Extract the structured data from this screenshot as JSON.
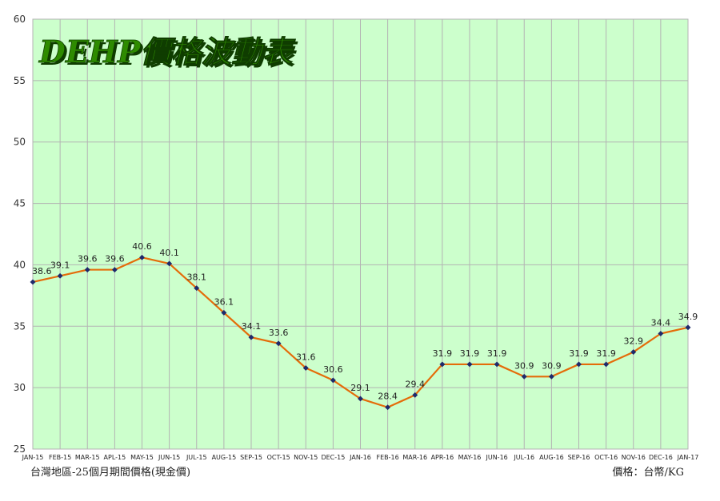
{
  "chart_data": {
    "type": "line",
    "title": "DEHP價格波動表",
    "categories": [
      "JAN-15",
      "FEB-15",
      "MAR-15",
      "APL-15",
      "MAY-15",
      "JUN-15",
      "JUL-15",
      "AUG-15",
      "SEP-15",
      "OCT-15",
      "NOV-15",
      "DEC-15",
      "JAN-16",
      "FEB-16",
      "MAR-16",
      "APR-16",
      "MAY-16",
      "JUN-16",
      "JUL-16",
      "AUG-16",
      "SEP-16",
      "OCT-16",
      "NOV-16",
      "DEC-16",
      "JAN-17"
    ],
    "series": [
      {
        "values": [
          38.6,
          39.1,
          39.6,
          39.6,
          40.6,
          40.1,
          38.1,
          36.1,
          34.1,
          33.6,
          31.6,
          30.6,
          29.1,
          28.4,
          29.4,
          31.9,
          31.9,
          31.9,
          30.9,
          30.9,
          31.9,
          31.9,
          32.9,
          34.4,
          34.9
        ]
      }
    ],
    "y_ticks": [
      "60",
      "55",
      "50",
      "45",
      "40",
      "35",
      "30",
      "25"
    ],
    "ylim": [
      25,
      60
    ],
    "grid": true,
    "footer_left": "台灣地區-25個月期間價格(現金價)",
    "footer_right": "價格：台幣/KG",
    "colors": {
      "plot_background": "#ccffcc",
      "grid": "#b3b3b3",
      "line": "#e46c0a",
      "marker": "#1f2a6b",
      "title_fill": "#2e8b00",
      "title_shadow": "#0f3d00"
    }
  }
}
